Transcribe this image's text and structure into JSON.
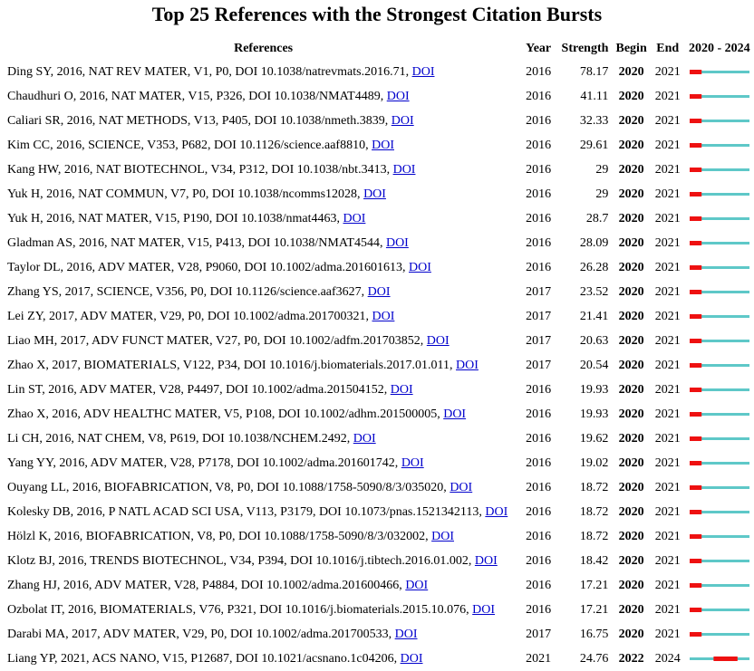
{
  "chart_data": {
    "type": "table",
    "title": "Top 25 References with the Strongest Citation Bursts",
    "headers": {
      "references": "References",
      "year": "Year",
      "strength": "Strength",
      "begin": "Begin",
      "end": "End",
      "range": "2020 - 2024"
    },
    "range_start": 2020,
    "range_end": 2024,
    "colors": {
      "burst": "#ee1111",
      "timeline": "#5ec8c8",
      "link": "#0000cc"
    },
    "doi_label": "DOI",
    "rows": [
      {
        "ref": "Ding SY, 2016, NAT REV MATER, V1, P0, DOI 10.1038/natrevmats.2016.71,",
        "year": "2016",
        "strength": "78.17",
        "begin": "2020",
        "end": "2021"
      },
      {
        "ref": "Chaudhuri O, 2016, NAT MATER, V15, P326, DOI 10.1038/NMAT4489,",
        "year": "2016",
        "strength": "41.11",
        "begin": "2020",
        "end": "2021"
      },
      {
        "ref": "Caliari SR, 2016, NAT METHODS, V13, P405, DOI 10.1038/nmeth.3839,",
        "year": "2016",
        "strength": "32.33",
        "begin": "2020",
        "end": "2021"
      },
      {
        "ref": "Kim CC, 2016, SCIENCE, V353, P682, DOI 10.1126/science.aaf8810,",
        "year": "2016",
        "strength": "29.61",
        "begin": "2020",
        "end": "2021"
      },
      {
        "ref": "Kang HW, 2016, NAT BIOTECHNOL, V34, P312, DOI 10.1038/nbt.3413,",
        "year": "2016",
        "strength": "29",
        "begin": "2020",
        "end": "2021"
      },
      {
        "ref": "Yuk H, 2016, NAT COMMUN, V7, P0, DOI 10.1038/ncomms12028,",
        "year": "2016",
        "strength": "29",
        "begin": "2020",
        "end": "2021"
      },
      {
        "ref": "Yuk H, 2016, NAT MATER, V15, P190, DOI 10.1038/nmat4463,",
        "year": "2016",
        "strength": "28.7",
        "begin": "2020",
        "end": "2021"
      },
      {
        "ref": "Gladman AS, 2016, NAT MATER, V15, P413, DOI 10.1038/NMAT4544,",
        "year": "2016",
        "strength": "28.09",
        "begin": "2020",
        "end": "2021"
      },
      {
        "ref": "Taylor DL, 2016, ADV MATER, V28, P9060, DOI 10.1002/adma.201601613,",
        "year": "2016",
        "strength": "26.28",
        "begin": "2020",
        "end": "2021"
      },
      {
        "ref": "Zhang YS, 2017, SCIENCE, V356, P0, DOI 10.1126/science.aaf3627,",
        "year": "2017",
        "strength": "23.52",
        "begin": "2020",
        "end": "2021"
      },
      {
        "ref": "Lei ZY, 2017, ADV MATER, V29, P0, DOI 10.1002/adma.201700321,",
        "year": "2017",
        "strength": "21.41",
        "begin": "2020",
        "end": "2021"
      },
      {
        "ref": "Liao MH, 2017, ADV FUNCT MATER, V27, P0, DOI 10.1002/adfm.201703852,",
        "year": "2017",
        "strength": "20.63",
        "begin": "2020",
        "end": "2021"
      },
      {
        "ref": "Zhao X, 2017, BIOMATERIALS, V122, P34, DOI 10.1016/j.biomaterials.2017.01.011,",
        "year": "2017",
        "strength": "20.54",
        "begin": "2020",
        "end": "2021"
      },
      {
        "ref": "Lin ST, 2016, ADV MATER, V28, P4497, DOI 10.1002/adma.201504152,",
        "year": "2016",
        "strength": "19.93",
        "begin": "2020",
        "end": "2021"
      },
      {
        "ref": "Zhao X, 2016, ADV HEALTHC MATER, V5, P108, DOI 10.1002/adhm.201500005,",
        "year": "2016",
        "strength": "19.93",
        "begin": "2020",
        "end": "2021"
      },
      {
        "ref": "Li CH, 2016, NAT CHEM, V8, P619, DOI 10.1038/NCHEM.2492,",
        "year": "2016",
        "strength": "19.62",
        "begin": "2020",
        "end": "2021"
      },
      {
        "ref": "Yang YY, 2016, ADV MATER, V28, P7178, DOI 10.1002/adma.201601742,",
        "year": "2016",
        "strength": "19.02",
        "begin": "2020",
        "end": "2021"
      },
      {
        "ref": "Ouyang LL, 2016, BIOFABRICATION, V8, P0, DOI 10.1088/1758-5090/8/3/035020,",
        "year": "2016",
        "strength": "18.72",
        "begin": "2020",
        "end": "2021"
      },
      {
        "ref": "Kolesky DB, 2016, P NATL ACAD SCI USA, V113, P3179, DOI 10.1073/pnas.1521342113,",
        "year": "2016",
        "strength": "18.72",
        "begin": "2020",
        "end": "2021"
      },
      {
        "ref": "Hölzl K, 2016, BIOFABRICATION, V8, P0, DOI 10.1088/1758-5090/8/3/032002,",
        "year": "2016",
        "strength": "18.72",
        "begin": "2020",
        "end": "2021"
      },
      {
        "ref": "Klotz BJ, 2016, TRENDS BIOTECHNOL, V34, P394, DOI 10.1016/j.tibtech.2016.01.002,",
        "year": "2016",
        "strength": "18.42",
        "begin": "2020",
        "end": "2021"
      },
      {
        "ref": "Zhang HJ, 2016, ADV MATER, V28, P4884, DOI 10.1002/adma.201600466,",
        "year": "2016",
        "strength": "17.21",
        "begin": "2020",
        "end": "2021"
      },
      {
        "ref": "Ozbolat IT, 2016, BIOMATERIALS, V76, P321, DOI 10.1016/j.biomaterials.2015.10.076,",
        "year": "2016",
        "strength": "17.21",
        "begin": "2020",
        "end": "2021"
      },
      {
        "ref": "Darabi MA, 2017, ADV MATER, V29, P0, DOI 10.1002/adma.201700533,",
        "year": "2017",
        "strength": "16.75",
        "begin": "2020",
        "end": "2021"
      },
      {
        "ref": "Liang YP, 2021, ACS NANO, V15, P12687, DOI 10.1021/acsnano.1c04206,",
        "year": "2021",
        "strength": "24.76",
        "begin": "2022",
        "end": "2024"
      }
    ]
  }
}
